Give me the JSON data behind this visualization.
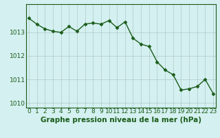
{
  "x": [
    0,
    1,
    2,
    3,
    4,
    5,
    6,
    7,
    8,
    9,
    10,
    11,
    12,
    13,
    14,
    15,
    16,
    17,
    18,
    19,
    20,
    21,
    22,
    23
  ],
  "y": [
    1013.6,
    1013.35,
    1013.15,
    1013.05,
    1013.0,
    1013.25,
    1013.05,
    1013.35,
    1013.4,
    1013.35,
    1013.5,
    1013.2,
    1013.45,
    1012.75,
    1012.5,
    1012.4,
    1011.75,
    1011.4,
    1011.2,
    1010.55,
    1010.6,
    1010.7,
    1011.0,
    1010.4
  ],
  "line_color": "#1a5c1a",
  "marker": "D",
  "markersize": 2.5,
  "linewidth": 1.0,
  "bg_color": "#d4f0f0",
  "grid_color": "#b0c8c8",
  "xlabel": "Graphe pression niveau de la mer (hPa)",
  "xlabel_fontsize": 7.5,
  "xlabel_color": "#1a5c1a",
  "tick_color": "#1a5c1a",
  "tick_fontsize": 6.5,
  "ylim": [
    1009.8,
    1014.2
  ],
  "yticks": [
    1010,
    1011,
    1012,
    1013
  ],
  "xticks": [
    0,
    1,
    2,
    3,
    4,
    5,
    6,
    7,
    8,
    9,
    10,
    11,
    12,
    13,
    14,
    15,
    16,
    17,
    18,
    19,
    20,
    21,
    22,
    23
  ],
  "spine_color": "#1a5c1a"
}
